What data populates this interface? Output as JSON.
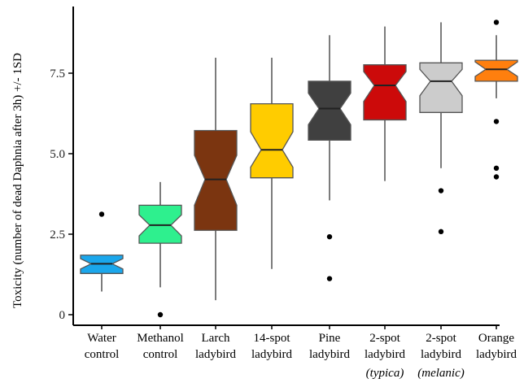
{
  "chart_data": {
    "type": "box",
    "ylabel": "Toxicity (number of dead Daphnia after 3h) +/- 1SD",
    "xlabel": "",
    "ylim": [
      -0.4,
      9.5
    ],
    "yticks": [
      0,
      2.5,
      5.0,
      7.5
    ],
    "ytick_labels": [
      "0",
      "2.5",
      "5.0",
      "7.5"
    ],
    "notched": true,
    "grid": false,
    "categories": [
      {
        "label_lines": [
          "Water",
          "control"
        ],
        "sub": "",
        "color": "#1aa7ec",
        "whisker_low": 0.72,
        "q1": 1.28,
        "median": 1.58,
        "q3": 1.85,
        "whisker_high": 1.85,
        "notch_low": 1.42,
        "notch_high": 1.74,
        "outliers": [
          3.12
        ]
      },
      {
        "label_lines": [
          "Methanol",
          "control"
        ],
        "sub": "",
        "color": "#2ef08e",
        "whisker_low": 0.85,
        "q1": 2.22,
        "median": 2.78,
        "q3": 3.4,
        "whisker_high": 4.12,
        "notch_low": 2.45,
        "notch_high": 3.1,
        "outliers": [
          0.0
        ]
      },
      {
        "label_lines": [
          "Larch",
          "ladybird"
        ],
        "sub": "",
        "color": "#7b3510",
        "whisker_low": 0.45,
        "q1": 2.62,
        "median": 4.2,
        "q3": 5.72,
        "whisker_high": 7.98,
        "notch_low": 3.4,
        "notch_high": 4.95,
        "outliers": []
      },
      {
        "label_lines": [
          "14-spot",
          "ladybird"
        ],
        "sub": "",
        "color": "#ffcc00",
        "whisker_low": 1.42,
        "q1": 4.25,
        "median": 5.12,
        "q3": 6.55,
        "whisker_high": 7.98,
        "notch_low": 4.58,
        "notch_high": 5.68,
        "outliers": []
      },
      {
        "label_lines": [
          "Pine",
          "ladybird"
        ],
        "sub": "",
        "color": "#404040",
        "whisker_low": 3.55,
        "q1": 5.42,
        "median": 6.4,
        "q3": 7.25,
        "whisker_high": 8.68,
        "notch_low": 5.9,
        "notch_high": 6.88,
        "outliers": [
          2.42,
          1.12
        ]
      },
      {
        "label_lines": [
          "2-spot",
          "ladybird"
        ],
        "sub": "(typica)",
        "color": "#cc0a0a",
        "whisker_low": 4.15,
        "q1": 6.05,
        "median": 7.12,
        "q3": 7.76,
        "whisker_high": 8.95,
        "notch_low": 6.62,
        "notch_high": 7.55,
        "outliers": []
      },
      {
        "label_lines": [
          "2-spot",
          "ladybird"
        ],
        "sub": "(melanic)",
        "color": "#cccccc",
        "whisker_low": 4.55,
        "q1": 6.28,
        "median": 7.25,
        "q3": 7.82,
        "whisker_high": 9.08,
        "notch_low": 6.8,
        "notch_high": 7.62,
        "outliers": [
          3.85,
          2.58
        ]
      },
      {
        "label_lines": [
          "Orange",
          "ladybird"
        ],
        "sub": "",
        "color": "#ff7f0e",
        "whisker_low": 6.72,
        "q1": 7.25,
        "median": 7.62,
        "q3": 7.9,
        "whisker_high": 8.68,
        "notch_low": 7.4,
        "notch_high": 7.85,
        "outliers": [
          9.08,
          6.0,
          4.55,
          4.28
        ]
      }
    ]
  }
}
